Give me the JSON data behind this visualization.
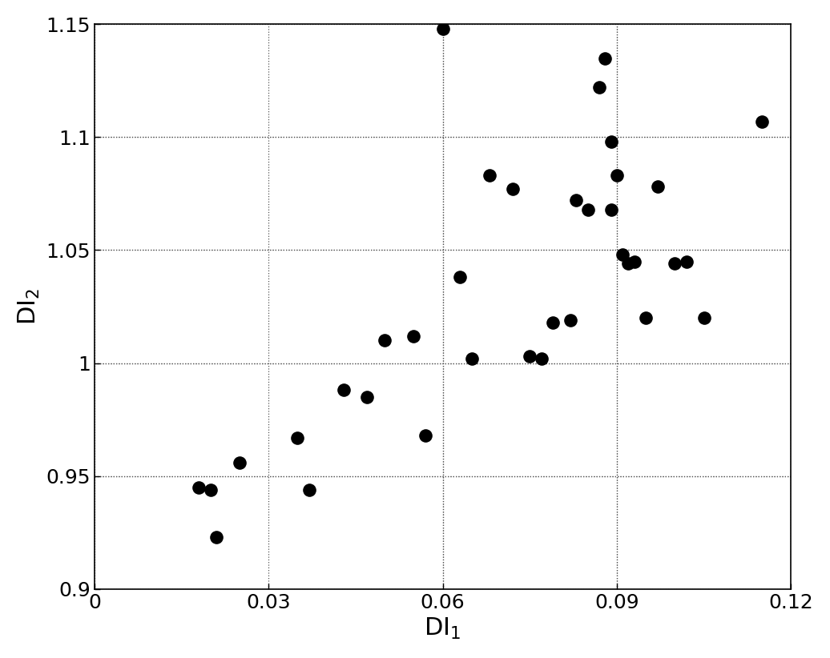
{
  "x_data": [
    0.018,
    0.02,
    0.021,
    0.025,
    0.035,
    0.037,
    0.043,
    0.047,
    0.05,
    0.055,
    0.057,
    0.06,
    0.063,
    0.065,
    0.068,
    0.072,
    0.075,
    0.077,
    0.079,
    0.082,
    0.083,
    0.085,
    0.087,
    0.088,
    0.089,
    0.089,
    0.09,
    0.091,
    0.092,
    0.093,
    0.095,
    0.097,
    0.1,
    0.102,
    0.105,
    0.115
  ],
  "y_data": [
    0.945,
    0.944,
    0.923,
    0.956,
    0.967,
    0.944,
    0.988,
    0.985,
    1.01,
    1.012,
    0.968,
    1.148,
    1.038,
    1.002,
    1.083,
    1.077,
    1.003,
    1.002,
    1.018,
    1.019,
    1.072,
    1.068,
    1.122,
    1.135,
    1.098,
    1.068,
    1.083,
    1.048,
    1.044,
    1.045,
    1.02,
    1.078,
    1.044,
    1.045,
    1.02,
    1.107
  ],
  "xlim": [
    0,
    0.12
  ],
  "ylim": [
    0.9,
    1.15
  ],
  "xticks": [
    0,
    0.03,
    0.06,
    0.09,
    0.12
  ],
  "xtick_labels": [
    "0",
    "0.03",
    "0.06",
    "0.09",
    "0.12"
  ],
  "yticks": [
    0.9,
    0.95,
    1.0,
    1.05,
    1.1,
    1.15
  ],
  "ytick_labels": [
    "0.9",
    "0.95",
    "1",
    "1.05",
    "1.1",
    "1.15"
  ],
  "xlabel": "DI$_1$",
  "ylabel": "DI$_2$",
  "marker_color": "#000000",
  "marker_size": 120,
  "grid_color": "#555555",
  "bg_color": "#ffffff",
  "xlabel_fontsize": 22,
  "ylabel_fontsize": 22,
  "tick_fontsize": 18,
  "vlines": [
    0.06,
    0.09
  ],
  "hlines": [
    0.95,
    1.0,
    1.05,
    1.1
  ]
}
